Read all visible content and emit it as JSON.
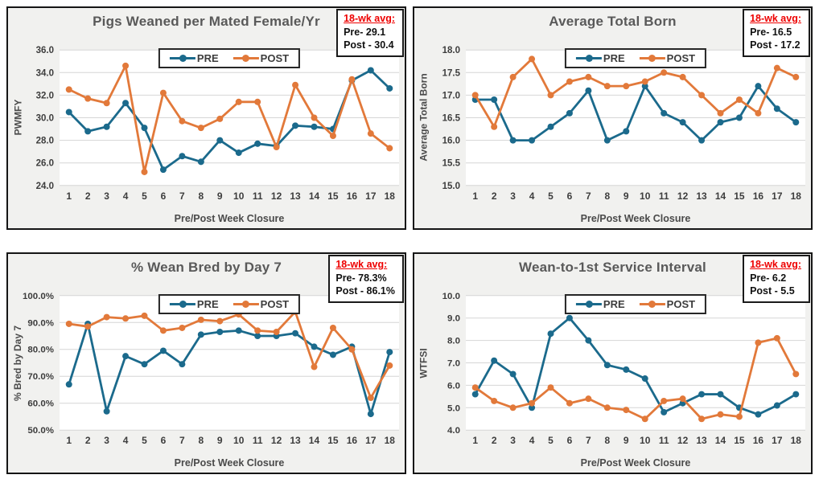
{
  "page": {
    "background": "#ffffff",
    "description_weeks": 18
  },
  "colors": {
    "pre": "#1b6a8c",
    "post": "#e2793a",
    "plot_bg": "#ffffff",
    "panel_bg": "#f1f1ef",
    "grid": "#d6d6d6",
    "title_text": "#595959",
    "tick_text": "#3d3d3d",
    "annotation_red": "#ee0000"
  },
  "chart_data": [
    {
      "type": "line",
      "title": "Pigs Weaned per Mated Female/Yr",
      "xlabel": "Pre/Post Week Closure",
      "ylabel": "PWMFY",
      "ylim": [
        24.0,
        36.0
      ],
      "ytick_values": [
        24,
        26,
        28,
        30,
        32,
        34,
        36
      ],
      "ytick_labels": [
        "24.0",
        "26.0",
        "28.0",
        "30.0",
        "32.0",
        "34.0",
        "36.0"
      ],
      "categories": [
        "1",
        "2",
        "3",
        "4",
        "5",
        "6",
        "7",
        "8",
        "9",
        "10",
        "11",
        "12",
        "13",
        "14",
        "15",
        "16",
        "17",
        "18"
      ],
      "grid": true,
      "legend_position": "top-center",
      "series": [
        {
          "name": "PRE",
          "values": [
            30.5,
            28.8,
            29.2,
            31.3,
            29.1,
            25.4,
            26.6,
            26.1,
            28.0,
            26.9,
            27.7,
            27.5,
            29.3,
            29.2,
            29.0,
            33.3,
            34.2,
            32.6
          ]
        },
        {
          "name": "POST",
          "values": [
            32.5,
            31.7,
            31.3,
            34.6,
            25.2,
            32.2,
            29.7,
            29.1,
            29.9,
            31.4,
            31.4,
            27.4,
            32.9,
            30.0,
            28.4,
            33.4,
            28.6,
            27.3
          ]
        }
      ],
      "annotation": {
        "header": "18-wk avg:",
        "pre": "Pre- 29.1",
        "post": "Post - 30.4"
      }
    },
    {
      "type": "line",
      "title": "Average Total Born",
      "xlabel": "Pre/Post Week Closure",
      "ylabel": "Average Total Born",
      "ylim": [
        15.0,
        18.0
      ],
      "ytick_values": [
        15,
        15.5,
        16,
        16.5,
        17,
        17.5,
        18
      ],
      "ytick_labels": [
        "15.0",
        "15.5",
        "16.0",
        "16.5",
        "17.0",
        "17.5",
        "18.0"
      ],
      "categories": [
        "1",
        "2",
        "3",
        "4",
        "5",
        "6",
        "7",
        "8",
        "9",
        "10",
        "11",
        "12",
        "13",
        "14",
        "15",
        "16",
        "17",
        "18"
      ],
      "grid": true,
      "legend_position": "top-center",
      "series": [
        {
          "name": "PRE",
          "values": [
            16.9,
            16.9,
            16.0,
            16.0,
            16.3,
            16.6,
            17.1,
            16.0,
            16.2,
            17.2,
            16.6,
            16.4,
            16.0,
            16.4,
            16.5,
            17.2,
            16.7,
            16.4
          ]
        },
        {
          "name": "POST",
          "values": [
            17.0,
            16.3,
            17.4,
            17.8,
            17.0,
            17.3,
            17.4,
            17.2,
            17.2,
            17.3,
            17.5,
            17.4,
            17.0,
            16.6,
            16.9,
            16.6,
            17.6,
            17.4
          ]
        }
      ],
      "annotation": {
        "header": "18-wk avg:",
        "pre": "Pre- 16.5",
        "post": "Post - 17.2"
      }
    },
    {
      "type": "line",
      "title": "% Wean Bred by Day 7",
      "xlabel": "Pre/Post Week Closure",
      "ylabel": "% Bred by Day 7",
      "ylim": [
        50,
        100
      ],
      "ytick_values": [
        50,
        60,
        70,
        80,
        90,
        100
      ],
      "ytick_labels": [
        "50.0%",
        "60.0%",
        "70.0%",
        "80.0%",
        "90.0%",
        "100.0%"
      ],
      "categories": [
        "1",
        "2",
        "3",
        "4",
        "5",
        "6",
        "7",
        "8",
        "9",
        "10",
        "11",
        "12",
        "13",
        "14",
        "15",
        "16",
        "17",
        "18"
      ],
      "grid": true,
      "legend_position": "top-center",
      "series": [
        {
          "name": "PRE",
          "values": [
            67.0,
            89.5,
            57.0,
            77.5,
            74.5,
            79.5,
            74.5,
            85.5,
            86.5,
            87.0,
            85.0,
            85.0,
            86.0,
            81.0,
            78.0,
            81.0,
            56.0,
            79.0
          ]
        },
        {
          "name": "POST",
          "values": [
            89.5,
            88.5,
            92.0,
            91.5,
            92.5,
            87.0,
            88.0,
            91.0,
            90.5,
            93.0,
            87.0,
            86.5,
            94.0,
            73.5,
            88.0,
            80.0,
            62.0,
            74.0
          ]
        }
      ],
      "annotation": {
        "header": "18-wk avg:",
        "pre": "Pre- 78.3%",
        "post": "Post - 86.1%"
      }
    },
    {
      "type": "line",
      "title": "Wean-to-1st Service Interval",
      "xlabel": "Pre/Post Week Closure",
      "ylabel": "WTFSI",
      "ylim": [
        4.0,
        10.0
      ],
      "ytick_values": [
        4,
        5,
        6,
        7,
        8,
        9,
        10
      ],
      "ytick_labels": [
        "4.0",
        "5.0",
        "6.0",
        "7.0",
        "8.0",
        "9.0",
        "10.0"
      ],
      "categories": [
        "1",
        "2",
        "3",
        "4",
        "5",
        "6",
        "7",
        "8",
        "9",
        "10",
        "11",
        "12",
        "13",
        "14",
        "15",
        "16",
        "17",
        "18"
      ],
      "grid": true,
      "legend_position": "top-center",
      "series": [
        {
          "name": "PRE",
          "values": [
            5.6,
            7.1,
            6.5,
            5.0,
            8.3,
            9.0,
            8.0,
            6.9,
            6.7,
            6.3,
            4.8,
            5.2,
            5.6,
            5.6,
            5.0,
            4.7,
            5.1,
            5.6
          ]
        },
        {
          "name": "POST",
          "values": [
            5.9,
            5.3,
            5.0,
            5.2,
            5.9,
            5.2,
            5.4,
            5.0,
            4.9,
            4.5,
            5.3,
            5.4,
            4.5,
            4.7,
            4.6,
            7.9,
            8.1,
            6.5
          ]
        }
      ],
      "annotation": {
        "header": "18-wk avg:",
        "pre": "Pre- 6.2",
        "post": "Post - 5.5"
      }
    }
  ]
}
